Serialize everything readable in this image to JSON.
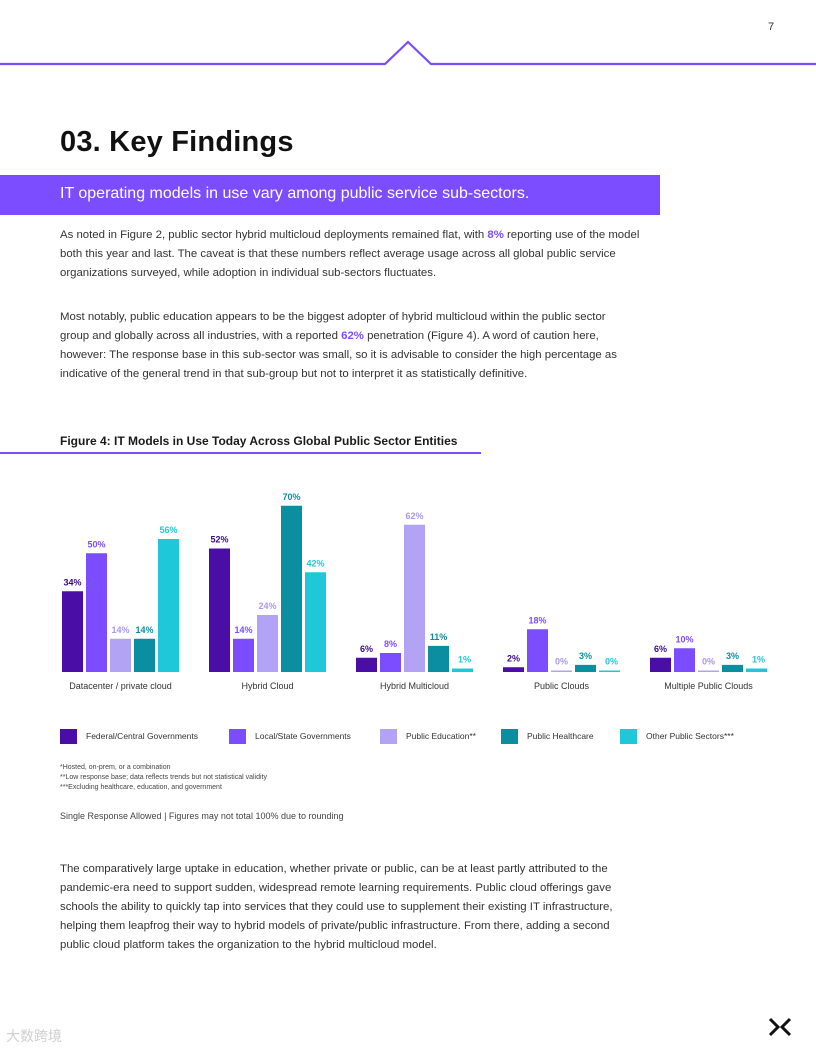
{
  "page": {
    "number": "7",
    "heading": "03. Key Findings",
    "banner": "IT operating models in use vary among public service sub-sectors.",
    "para1": {
      "before": "As noted in Figure 2, public sector hybrid multicloud deployments remained flat, with ",
      "highlight": "8%",
      "after": " reporting use of the model both this year and last. The caveat is that these numbers reflect average usage across all global public service organizations surveyed, while adoption in individual sub-sectors fluctuates."
    },
    "para2": {
      "before": "Most notably, public education appears to be the biggest adopter of hybrid multicloud within the public sector group and globally across all industries, with a reported ",
      "highlight": "62%",
      "after": " penetration (Figure 4). A word of caution here, however: The response base in this sub-sector was small, so it is advisable to consider the high percentage as indicative of the general trend in that sub-group but not to interpret it as statistically definitive."
    },
    "figure_title": "Figure 4: IT Models in Use Today Across Global Public Sector Entities",
    "footnotes": [
      "*Hosted, on-prem, or a combination",
      "**Low response base; data reflects trends but not statistical validity",
      "***Excluding healthcare, education, and government"
    ],
    "response_note": "Single Response Allowed  |  Figures may not total 100% due to rounding",
    "para3": "The comparatively large uptake in education, whether private or public, can be at least partly attributed to the pandemic-era need to support sudden, widespread remote learning requirements. Public cloud offerings gave schools the ability to quickly tap into services that they could use to supplement their existing IT infrastructure, helping them leapfrog their way to hybrid models of private/public infrastructure. From there, adding a second public cloud platform takes the organization to the hybrid multicloud model.",
    "watermark": "大数跨境"
  },
  "colors": {
    "accent": "#7c4dff",
    "series": [
      "#4a0da6",
      "#7c4dff",
      "#b3a3f5",
      "#0b8ea0",
      "#1fc8d8"
    ]
  },
  "chart_data": {
    "type": "bar",
    "title": "Figure 4: IT Models in Use Today Across Global Public Sector Entities",
    "categories": [
      "Datacenter / private cloud",
      "Hybrid Cloud",
      "Hybrid Multicloud",
      "Public Clouds",
      "Multiple Public Clouds"
    ],
    "ylim": [
      0,
      70
    ],
    "series": [
      {
        "name": "Federal/Central Governments",
        "values": [
          34,
          52,
          6,
          2,
          6
        ]
      },
      {
        "name": "Local/State Governments",
        "values": [
          50,
          14,
          8,
          18,
          10
        ]
      },
      {
        "name": "Public Education**",
        "values": [
          14,
          24,
          62,
          0,
          0
        ]
      },
      {
        "name": "Public Healthcare",
        "values": [
          14,
          70,
          11,
          3,
          3
        ]
      },
      {
        "name": "Other Public Sectors***",
        "values": [
          56,
          42,
          1,
          0,
          1
        ]
      }
    ],
    "legend_position": "bottom"
  }
}
